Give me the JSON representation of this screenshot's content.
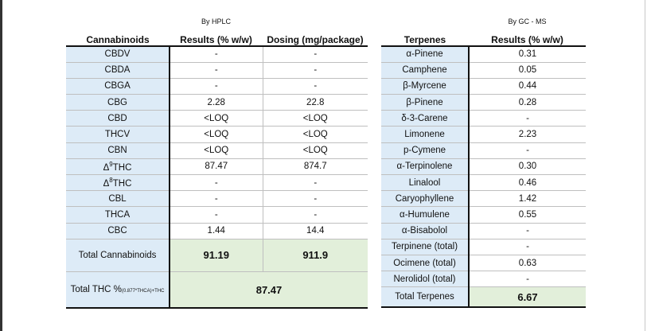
{
  "left": {
    "method": "By HPLC",
    "headers": [
      "Cannabinoids",
      "Results (% w/w)",
      "Dosing (mg/package)"
    ],
    "rows": [
      [
        "CBDV",
        "-",
        "-"
      ],
      [
        "CBDA",
        "-",
        "-"
      ],
      [
        "CBGA",
        "-",
        "-"
      ],
      [
        "CBG",
        "2.28",
        "22.8"
      ],
      [
        "CBD",
        "<LOQ",
        "<LOQ"
      ],
      [
        "THCV",
        "<LOQ",
        "<LOQ"
      ],
      [
        "CBN",
        "<LOQ",
        "<LOQ"
      ],
      [
        {
          "prefix": "Δ",
          "sup": "9",
          "text": "THC"
        },
        "87.47",
        "874.7"
      ],
      [
        {
          "prefix": "Δ",
          "sup": "8",
          "text": "THC"
        },
        "-",
        "-"
      ],
      [
        "CBL",
        "-",
        "-"
      ],
      [
        "THCA",
        "-",
        "-"
      ],
      [
        "CBC",
        "1.44",
        "14.4"
      ]
    ],
    "total": {
      "label": "Total Cannabinoids",
      "results": "91.19",
      "dosing": "911.9"
    },
    "total_thc": {
      "label": "Total THC %",
      "formula": "(0.877*THCA)+THC",
      "value": "87.47"
    }
  },
  "right": {
    "method": "By GC - MS",
    "headers": [
      "Terpenes",
      "Results (% w/w)"
    ],
    "rows": [
      [
        "α-Pinene",
        "0.31"
      ],
      [
        "Camphene",
        "0.05"
      ],
      [
        "β-Myrcene",
        "0.44"
      ],
      [
        "β-Pinene",
        "0.28"
      ],
      [
        "δ-3-Carene",
        "-"
      ],
      [
        "Limonene",
        "2.23"
      ],
      [
        "p-Cymene",
        "-"
      ],
      [
        "α-Terpinolene",
        "0.30"
      ],
      [
        "Linalool",
        "0.46"
      ],
      [
        "Caryophyllene",
        "1.42"
      ],
      [
        "α-Humulene",
        "0.55"
      ],
      [
        "α-Bisabolol",
        "-"
      ],
      [
        "Terpinene (total)",
        "-"
      ],
      [
        "Ocimene (total)",
        "0.63"
      ],
      [
        "Nerolidol (total)",
        "-"
      ]
    ],
    "total": {
      "label": "Total Terpenes",
      "value": "6.67"
    }
  }
}
